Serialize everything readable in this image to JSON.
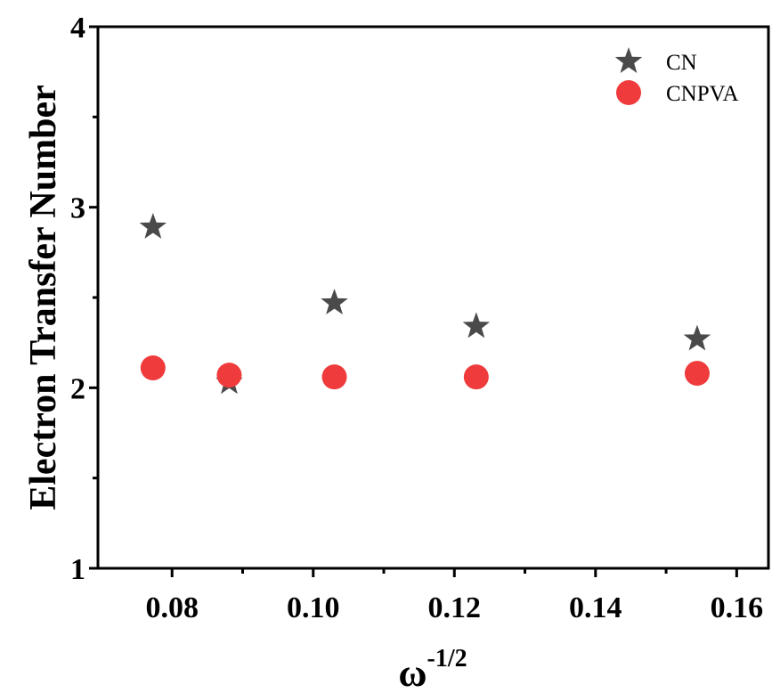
{
  "chart_data": {
    "type": "scatter",
    "title": "",
    "xlabel": "ω",
    "xlabel_superscript": "-1/2",
    "ylabel": "Electron Transfer Number",
    "xlim": [
      0.0695,
      0.1645
    ],
    "ylim": [
      1,
      4
    ],
    "xticks": [
      0.08,
      0.1,
      0.12,
      0.14,
      0.16
    ],
    "xtick_labels": [
      "0.08",
      "0.10",
      "0.12",
      "0.14",
      "0.16"
    ],
    "yticks": [
      1,
      2,
      3,
      4
    ],
    "ytick_labels": [
      "1",
      "2",
      "3",
      "4"
    ],
    "grid": false,
    "legend_position": "top-right",
    "series": [
      {
        "name": "CN",
        "marker": "star",
        "color": "#4a4a4a",
        "points": [
          {
            "x": 0.0773,
            "y": 2.89
          },
          {
            "x": 0.0881,
            "y": 2.03
          },
          {
            "x": 0.103,
            "y": 2.47
          },
          {
            "x": 0.1231,
            "y": 2.34
          },
          {
            "x": 0.1544,
            "y": 2.27
          }
        ]
      },
      {
        "name": "CNPVA",
        "marker": "circle",
        "color": "#ef3b3b",
        "points": [
          {
            "x": 0.0773,
            "y": 2.11
          },
          {
            "x": 0.0881,
            "y": 2.07
          },
          {
            "x": 0.103,
            "y": 2.06
          },
          {
            "x": 0.1231,
            "y": 2.06
          },
          {
            "x": 0.1544,
            "y": 2.08
          }
        ]
      }
    ]
  }
}
